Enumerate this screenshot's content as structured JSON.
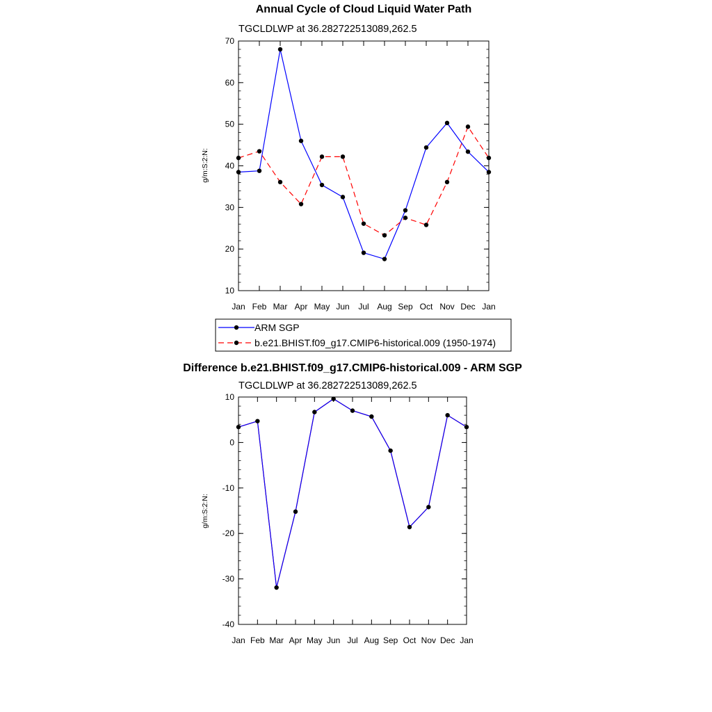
{
  "chart_data": [
    {
      "type": "line",
      "title": "Annual Cycle of Cloud Liquid Water Path",
      "subtitle": "TGCLDLWP at 36.282722513089,262.5",
      "ylabel": "g/m:S:2:N:",
      "ylim": [
        10,
        70
      ],
      "yticks": [
        "10",
        "20",
        "30",
        "40",
        "50",
        "60",
        "70"
      ],
      "categories": [
        "Jan",
        "Feb",
        "Mar",
        "Apr",
        "May",
        "Jun",
        "Jul",
        "Aug",
        "Sep",
        "Oct",
        "Nov",
        "Dec",
        "Jan"
      ],
      "series": [
        {
          "name": "ARM SGP",
          "color": "#0000ff",
          "dash": "solid",
          "values": [
            38.5,
            38.8,
            68.0,
            46.0,
            35.4,
            32.5,
            19.1,
            17.6,
            29.3,
            44.4,
            50.3,
            43.4,
            38.5
          ]
        },
        {
          "name": "b.e21.BHIST.f09_g17.CMIP6-historical.009 (1950-1974)",
          "color": "#ff0000",
          "dash": "dashed",
          "values": [
            41.9,
            43.5,
            36.1,
            30.8,
            42.2,
            42.2,
            26.1,
            23.3,
            27.5,
            25.8,
            36.1,
            49.4,
            41.9
          ]
        }
      ],
      "legend": "bottom"
    },
    {
      "type": "line",
      "title": "Difference b.e21.BHIST.f09_g17.CMIP6-historical.009 - ARM SGP",
      "subtitle": "TGCLDLWP at 36.282722513089,262.5",
      "ylabel": "g/m:S:2:N:",
      "ylim": [
        -40,
        10
      ],
      "yticks": [
        "-40",
        "-30",
        "-20",
        "-10",
        "0",
        "10"
      ],
      "categories": [
        "Jan",
        "Feb",
        "Mar",
        "Apr",
        "May",
        "Jun",
        "Jul",
        "Aug",
        "Sep",
        "Oct",
        "Nov",
        "Dec",
        "Jan"
      ],
      "series": [
        {
          "color": "#0000ff",
          "overlay_color": "#ff0000",
          "values": [
            3.4,
            4.7,
            -31.9,
            -15.2,
            6.7,
            9.6,
            7.0,
            5.7,
            -1.8,
            -18.6,
            -14.2,
            6.0,
            3.4
          ]
        }
      ]
    }
  ]
}
